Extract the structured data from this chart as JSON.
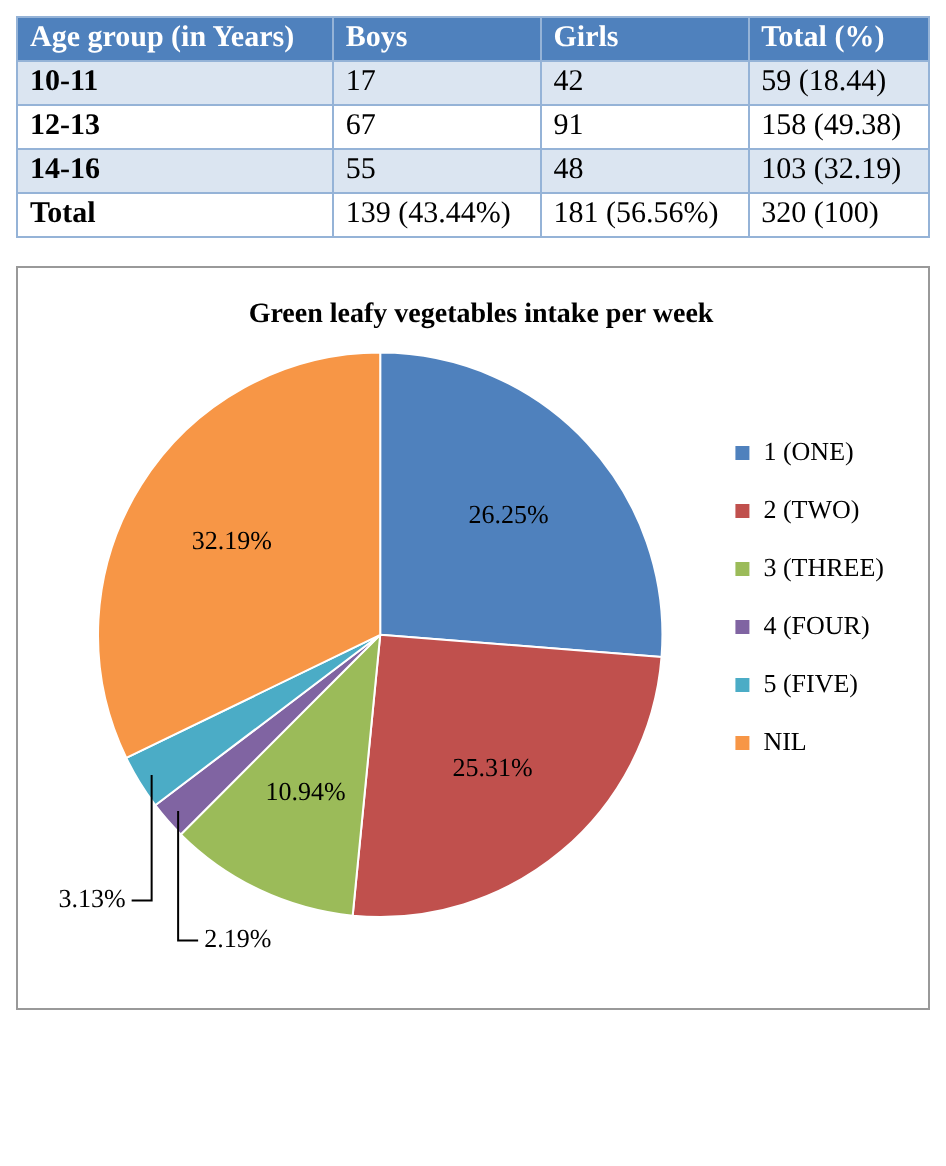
{
  "chart_data": [
    {
      "type": "other",
      "categories": [
        "Age group (in Years)",
        "Boys",
        "Girls",
        "Total (%)"
      ],
      "y_categories": [
        "10-11",
        "12-13",
        "14-16",
        "Total"
      ],
      "cell_labels": [
        [
          "17",
          "42",
          "59 (18.44)"
        ],
        [
          "67",
          "91",
          "158 (49.38)"
        ],
        [
          "55",
          "48",
          "103 (32.19)"
        ],
        [
          "139 (43.44%)",
          "181 (56.56%)",
          "320 (100)"
        ]
      ]
    },
    {
      "type": "pie",
      "title": "Green leafy vegetables intake per week",
      "categories": [
        "1 (ONE)",
        "2 (TWO)",
        "3 (THREE)",
        "4 (FOUR)",
        "5 (FIVE)",
        "NIL"
      ],
      "values": [
        26.25,
        25.31,
        10.94,
        2.19,
        3.13,
        32.19
      ],
      "colors": [
        "#4f81bd",
        "#c0504d",
        "#9bbb59",
        "#8064a2",
        "#4bacc6",
        "#f79646"
      ],
      "value_labels": [
        "26.25%",
        "25.31%",
        "10.94%",
        "2.19%",
        "3.13%",
        "32.19%"
      ],
      "legend": "right"
    }
  ]
}
